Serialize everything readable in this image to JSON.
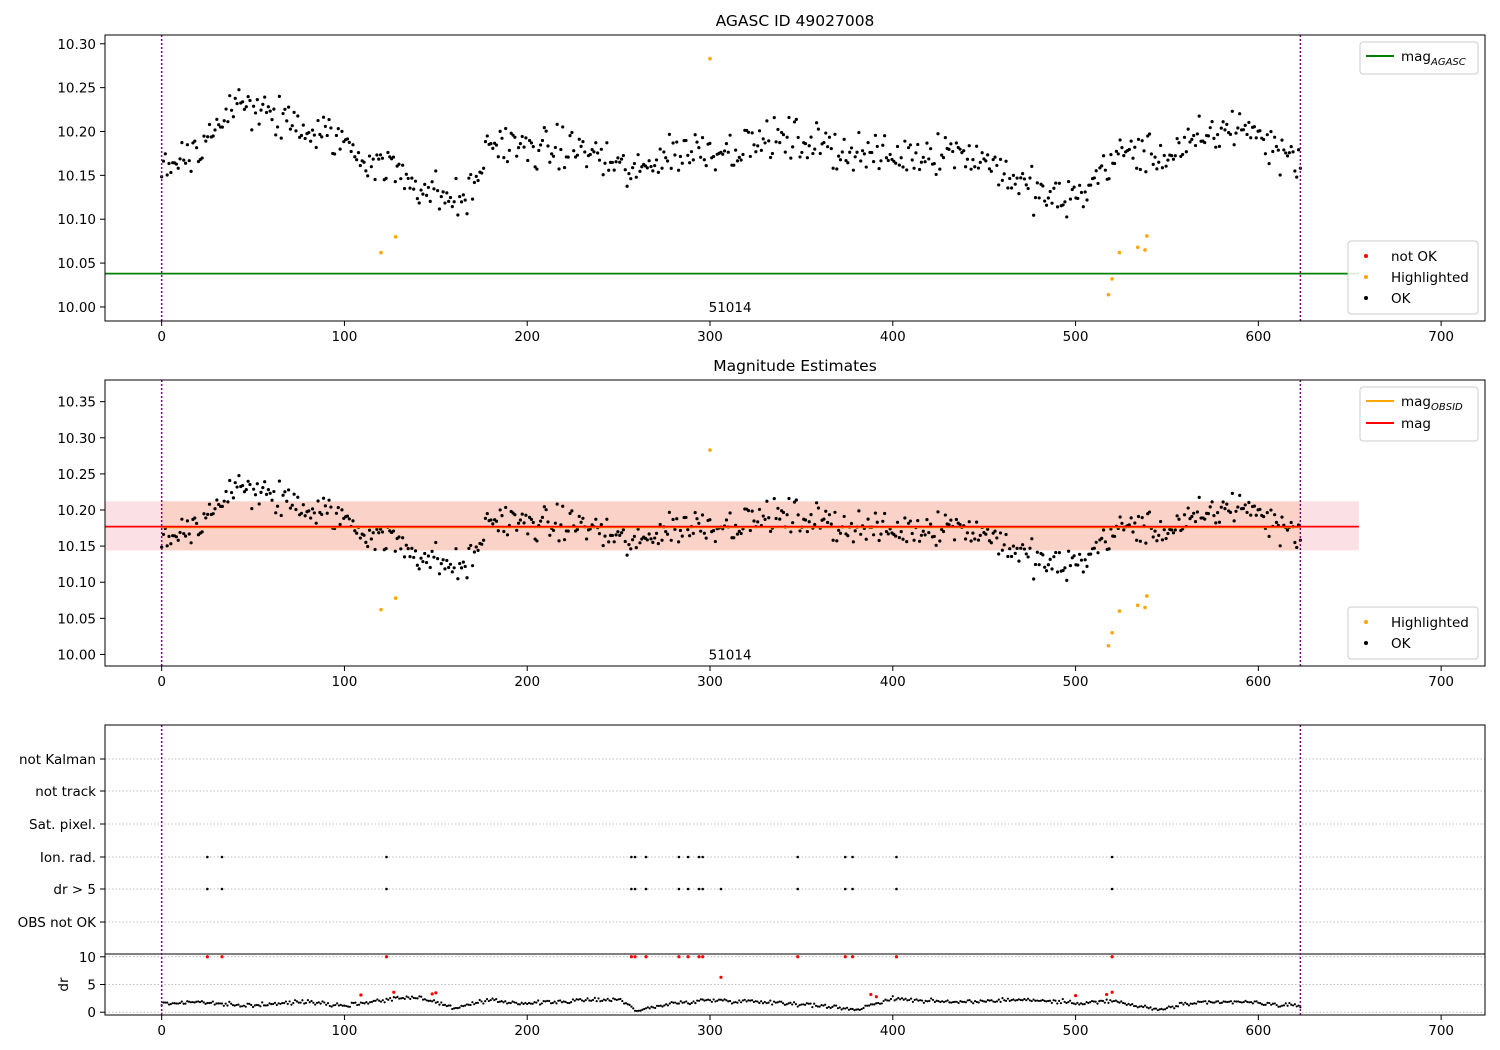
{
  "chart_data": [
    {
      "type": "scatter",
      "title": "AGASC ID 49027008",
      "xlim": [
        -31,
        724
      ],
      "ylim": [
        9.984,
        10.31
      ],
      "xticks": [
        0,
        100,
        200,
        300,
        400,
        500,
        600,
        700
      ],
      "yticks": [
        10.0,
        10.05,
        10.1,
        10.15,
        10.2,
        10.25,
        10.3
      ],
      "obsid_bounds": [
        0,
        623
      ],
      "obsid_annotation": {
        "text": "51014",
        "x": 311,
        "y": 10.0
      },
      "lines": [
        {
          "name": "mag_AGASC",
          "label": "mag",
          "subscript": "AGASC",
          "y": 10.038,
          "x_end": 655,
          "color": "#008000"
        }
      ],
      "legend_lines_position": "upper right",
      "legend_points_position": "lower right",
      "legend_points": [
        {
          "label": "not OK",
          "color": "#ff0000"
        },
        {
          "label": "Highlighted",
          "color": "#ffa500"
        },
        {
          "label": "OK",
          "color": "#000000"
        }
      ],
      "highlighted_points": [
        [
          120,
          10.062
        ],
        [
          128,
          10.08
        ],
        [
          300,
          10.283
        ],
        [
          518,
          10.014
        ],
        [
          520,
          10.032
        ],
        [
          524,
          10.062
        ],
        [
          534,
          10.068
        ],
        [
          538,
          10.065
        ],
        [
          539,
          10.081
        ]
      ],
      "ok_profile_x": [
        0,
        20,
        40,
        60,
        80,
        100,
        110,
        125,
        140,
        150,
        160,
        170,
        180,
        200,
        230,
        250,
        260,
        270,
        290,
        310,
        330,
        350,
        370,
        400,
        430,
        450,
        470,
        490,
        505,
        515,
        530,
        545,
        570,
        590,
        610,
        624
      ],
      "ok_profile_y": [
        10.16,
        10.18,
        10.23,
        10.22,
        10.2,
        10.19,
        10.17,
        10.16,
        10.14,
        10.13,
        10.12,
        10.13,
        10.19,
        10.18,
        10.18,
        10.16,
        10.15,
        10.17,
        10.18,
        10.18,
        10.19,
        10.19,
        10.18,
        10.17,
        10.18,
        10.17,
        10.14,
        10.12,
        10.13,
        10.16,
        10.18,
        10.17,
        10.19,
        10.21,
        10.18,
        10.17
      ],
      "ok_point_count": 620
    },
    {
      "type": "scatter",
      "title": "Magnitude Estimates",
      "xlim": [
        -31,
        724
      ],
      "ylim": [
        9.984,
        10.38
      ],
      "xticks": [
        0,
        100,
        200,
        300,
        400,
        500,
        600,
        700
      ],
      "yticks": [
        10.0,
        10.05,
        10.1,
        10.15,
        10.2,
        10.25,
        10.3,
        10.35
      ],
      "obsid_bounds": [
        0,
        623
      ],
      "obsid_annotation": {
        "text": "51014",
        "x": 311,
        "y": 10.0
      },
      "bands": [
        {
          "name": "mag_band",
          "y_low": 10.144,
          "y_high": 10.212,
          "x_start": -31,
          "x_end": 655,
          "color": "#f4a6b4"
        },
        {
          "name": "mag_OBSID_band",
          "y_low": 10.144,
          "y_high": 10.212,
          "x_start": 0,
          "x_end": 623,
          "color": "#f8b690"
        }
      ],
      "lines": [
        {
          "name": "mag_OBSID",
          "label": "mag",
          "subscript": "OBSID",
          "y": 10.176,
          "x_start": 0,
          "x_end": 623,
          "color": "#ffa500"
        },
        {
          "name": "mag",
          "label": "mag",
          "subscript": "",
          "y": 10.177,
          "x_start": -31,
          "x_end": 655,
          "color": "#ff0000"
        }
      ],
      "legend_lines_position": "upper right",
      "legend_points_position": "lower right",
      "legend_points": [
        {
          "label": "Highlighted",
          "color": "#ffa500"
        },
        {
          "label": "OK",
          "color": "#000000"
        }
      ],
      "highlighted_points": [
        [
          120,
          10.062
        ],
        [
          128,
          10.078
        ],
        [
          300,
          10.283
        ],
        [
          518,
          10.012
        ],
        [
          520,
          10.03
        ],
        [
          524,
          10.06
        ],
        [
          534,
          10.068
        ],
        [
          538,
          10.065
        ],
        [
          539,
          10.081
        ]
      ]
    },
    {
      "type": "scatter",
      "title": "",
      "xlim": [
        -31,
        724
      ],
      "xticks": [
        0,
        100,
        200,
        300,
        400,
        500,
        600,
        700
      ],
      "obsid_bounds": [
        0,
        623
      ],
      "flag_categories": [
        "not Kalman",
        "not track",
        "Sat. pixel.",
        "Ion. rad.",
        "dr > 5",
        "OBS not OK"
      ],
      "ion_rad_x": [
        25,
        33,
        123,
        257,
        259,
        265,
        283,
        288,
        294,
        296,
        348,
        374,
        378,
        402,
        520
      ],
      "dr5_x": [
        25,
        33,
        123,
        257,
        259,
        265,
        283,
        288,
        294,
        296,
        306,
        348,
        374,
        378,
        402,
        520
      ],
      "dr_ylabel": "dr",
      "dr_ylim": [
        -0.5,
        10.5
      ],
      "dr_yticks": [
        0,
        5,
        10
      ],
      "dr_red_points": [
        [
          25,
          10
        ],
        [
          33,
          10
        ],
        [
          123,
          10
        ],
        [
          257,
          10
        ],
        [
          259,
          10
        ],
        [
          265,
          10
        ],
        [
          283,
          10
        ],
        [
          288,
          10
        ],
        [
          294,
          10
        ],
        [
          296,
          10
        ],
        [
          348,
          10
        ],
        [
          374,
          10
        ],
        [
          378,
          10
        ],
        [
          402,
          10
        ],
        [
          520,
          10
        ],
        [
          306,
          6.3
        ],
        [
          109,
          3.1
        ],
        [
          127,
          3.6
        ],
        [
          148,
          3.3
        ],
        [
          150,
          3.5
        ],
        [
          388,
          3.2
        ],
        [
          391,
          2.8
        ],
        [
          500,
          3.0
        ],
        [
          517,
          3.2
        ],
        [
          520,
          3.6
        ]
      ],
      "dr_profile_x": [
        0,
        20,
        40,
        60,
        80,
        100,
        125,
        140,
        160,
        180,
        200,
        230,
        250,
        260,
        280,
        300,
        330,
        350,
        380,
        400,
        430,
        470,
        500,
        520,
        545,
        560,
        590,
        624
      ],
      "dr_profile_y": [
        1.5,
        1.9,
        1.2,
        1.4,
        2.0,
        1.2,
        2.4,
        2.8,
        0.8,
        2.1,
        1.6,
        2.1,
        2.4,
        0.3,
        1.6,
        2.2,
        1.9,
        1.5,
        0.5,
        2.5,
        1.8,
        2.3,
        1.7,
        2.0,
        0.4,
        1.5,
        1.9,
        1.0
      ]
    }
  ]
}
